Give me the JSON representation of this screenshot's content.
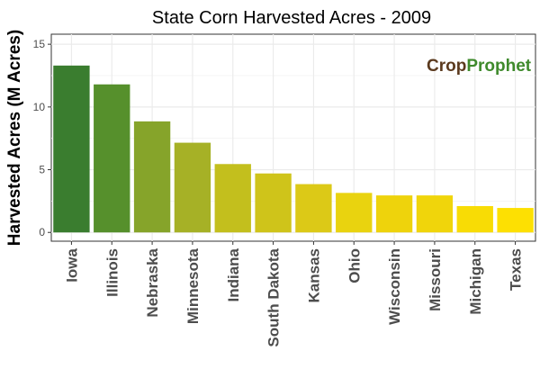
{
  "chart_data": {
    "type": "bar",
    "title": "State Corn Harvested Acres - 2009",
    "xlabel": "",
    "ylabel": "Harvested Acres (M Acres)",
    "categories": [
      "Iowa",
      "Illinois",
      "Nebraska",
      "Minnesota",
      "Indiana",
      "South Dakota",
      "Kansas",
      "Ohio",
      "Wisconsin",
      "Missouri",
      "Michigan",
      "Texas"
    ],
    "values": [
      13.3,
      11.8,
      8.85,
      7.15,
      5.45,
      4.7,
      3.85,
      3.15,
      2.95,
      2.95,
      2.1,
      1.95
    ],
    "ylim": [
      -0.7,
      15.8
    ],
    "yticks": [
      0,
      5,
      10,
      15
    ],
    "grid": true,
    "legend": "none",
    "colors": [
      "#3a7d2f",
      "#56902c",
      "#86a42a",
      "#a6b126",
      "#c3bf1d",
      "#cfc41a",
      "#dcc917",
      "#e9d30f",
      "#eed30c",
      "#f0d50b",
      "#f8dc05",
      "#fde002"
    ]
  },
  "logo": {
    "part1": "Crop",
    "part2": "Prophet"
  }
}
